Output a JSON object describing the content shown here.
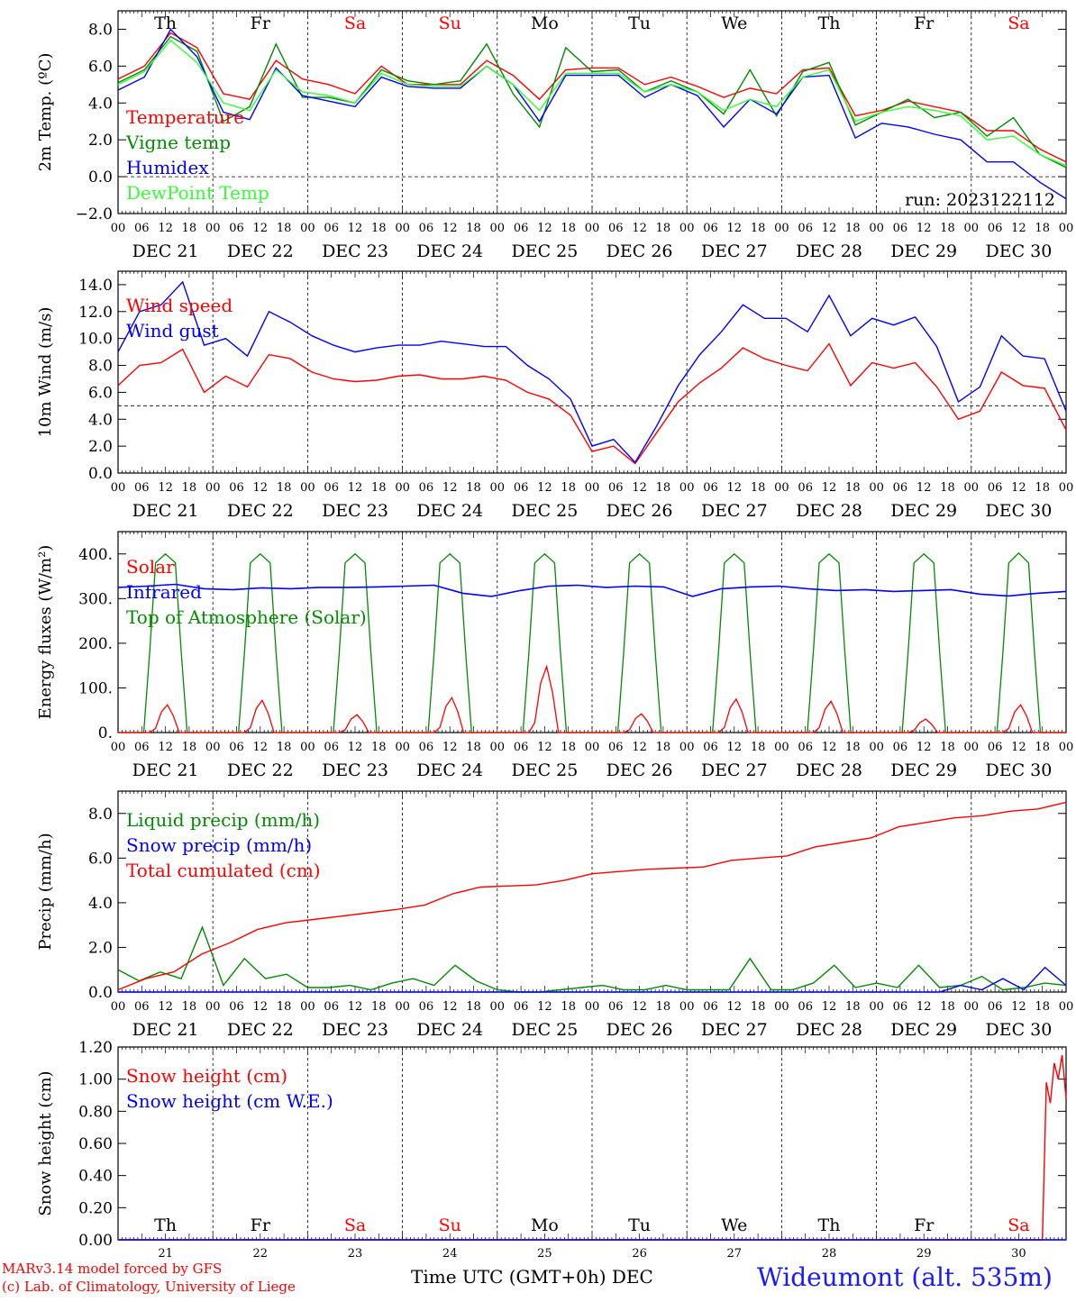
{
  "footer": {
    "credit_line1": "MARv3.14 model forced by GFS",
    "credit_line2": "(c) Lab. of Climatology, University of Liege",
    "x_title": "Time UTC (GMT+0h) DEC",
    "station": "Wideumont (alt. 535m)"
  },
  "colors": {
    "red": "#ff0000",
    "green": "#008c00",
    "blue": "#0000ff",
    "lightgreen": "#33ff33",
    "weekend": "#ff0000",
    "weekday": "#000000"
  },
  "chart_data": [
    {
      "type": "line",
      "ylabel": "2m Temp. (ºC)",
      "ylim": [
        -2,
        9
      ],
      "y_ticks": [
        -2,
        0,
        2,
        4,
        6,
        8
      ],
      "y_tick_labels": [
        "−2.0",
        "0.0",
        "2.0",
        "4.0",
        "6.0",
        "8.0"
      ],
      "x_hours": [
        0,
        6,
        12,
        18,
        24,
        30,
        36,
        42,
        48,
        54,
        60,
        66,
        72,
        78,
        84,
        90,
        96,
        102,
        108,
        114,
        120,
        126,
        132,
        138,
        144,
        150,
        156,
        162,
        168,
        174,
        180,
        186,
        192,
        198,
        204,
        210,
        216,
        222,
        228,
        234,
        240
      ],
      "x_tick_labels": [
        "00",
        "06",
        "12",
        "18",
        "00",
        "06",
        "12",
        "18",
        "00",
        "06",
        "12",
        "18",
        "00",
        "06",
        "12",
        "18",
        "00",
        "06",
        "12",
        "18",
        "00",
        "06",
        "12",
        "18",
        "00",
        "06",
        "12",
        "18",
        "00",
        "06",
        "12",
        "18",
        "00",
        "06",
        "12",
        "18",
        "00",
        "06",
        "12",
        "18",
        "00"
      ],
      "date_labels": [
        "DEC 21",
        "DEC 22",
        "DEC 23",
        "DEC 24",
        "DEC 25",
        "DEC 26",
        "DEC 27",
        "DEC 28",
        "DEC 29",
        "DEC 30"
      ],
      "day_labels": [
        "Th",
        "Fr",
        "Sa",
        "Su",
        "Mo",
        "Tu",
        "We",
        "Th",
        "Fr",
        "Sa"
      ],
      "run_label": "run: 2023122112",
      "dashed_reference": 0,
      "series": [
        {
          "name": "Temperature",
          "color": "#ff0000",
          "values": [
            5.3,
            6.0,
            7.8,
            7.0,
            4.5,
            4.2,
            6.3,
            5.3,
            5.0,
            4.5,
            6.0,
            5.0,
            5.0,
            5.0,
            6.3,
            5.5,
            4.2,
            5.8,
            5.9,
            5.9,
            5.0,
            5.4,
            4.9,
            4.3,
            4.8,
            4.5,
            5.8,
            5.9,
            3.3,
            3.6,
            4.1,
            3.8,
            3.5,
            2.5,
            2.5,
            1.5,
            0.8
          ]
        },
        {
          "name": "Vigne temp",
          "color": "#008c00",
          "values": [
            5.1,
            5.8,
            7.6,
            6.8,
            3.0,
            3.8,
            7.2,
            4.3,
            4.3,
            4.0,
            5.8,
            5.2,
            5.0,
            5.2,
            7.2,
            4.5,
            2.7,
            7.0,
            5.7,
            5.8,
            4.6,
            5.2,
            4.6,
            3.4,
            5.8,
            3.3,
            5.7,
            6.2,
            2.8,
            3.5,
            4.2,
            3.2,
            3.5,
            2.2,
            3.2,
            1.2,
            0.5
          ]
        },
        {
          "name": "Humidex",
          "color": "#0000ff",
          "values": [
            4.7,
            5.4,
            8.0,
            6.5,
            3.5,
            3.1,
            5.9,
            4.4,
            4.1,
            3.8,
            5.4,
            4.9,
            4.8,
            4.8,
            6.0,
            5.0,
            3.0,
            5.5,
            5.5,
            5.5,
            4.3,
            5.0,
            4.4,
            2.7,
            4.2,
            3.4,
            5.4,
            5.5,
            2.1,
            2.9,
            2.7,
            2.3,
            2.0,
            0.8,
            0.8,
            -0.3,
            -1.2
          ]
        },
        {
          "name": "DewPoint Temp",
          "color": "#33ff33",
          "values": [
            5.0,
            5.7,
            7.4,
            6.2,
            4.0,
            3.6,
            5.8,
            4.6,
            4.4,
            4.0,
            5.6,
            5.0,
            4.9,
            4.9,
            6.0,
            5.0,
            3.6,
            5.6,
            5.6,
            5.6,
            4.6,
            5.0,
            4.6,
            3.6,
            4.2,
            3.8,
            5.4,
            5.8,
            3.0,
            3.5,
            3.8,
            3.6,
            3.3,
            2.0,
            2.2,
            1.2,
            0.6
          ]
        }
      ],
      "legend_placement": "top-left"
    },
    {
      "type": "line",
      "ylabel": "10m Wind (m/s)",
      "ylim": [
        0,
        15
      ],
      "y_ticks": [
        0,
        2,
        4,
        6,
        8,
        10,
        12,
        14
      ],
      "y_tick_labels": [
        "0.0",
        "2.0",
        "4.0",
        "6.0",
        "8.0",
        "10.0",
        "12.0",
        "14.0"
      ],
      "dashed_reference": 5,
      "series": [
        {
          "name": "Wind speed",
          "color": "#ff0000",
          "values": [
            6.5,
            8.0,
            8.2,
            9.2,
            6.0,
            7.2,
            6.4,
            8.8,
            8.5,
            7.5,
            7.0,
            6.8,
            6.9,
            7.2,
            7.3,
            7.0,
            7.0,
            7.2,
            6.9,
            6.0,
            5.5,
            4.3,
            1.6,
            2.0,
            0.7,
            3.0,
            5.3,
            6.7,
            7.8,
            9.3,
            8.5,
            8.0,
            7.6,
            9.6,
            6.5,
            8.2,
            7.8,
            8.2,
            6.4,
            4.0,
            4.6,
            7.5,
            6.5,
            6.3,
            3.2
          ]
        },
        {
          "name": "Wind gust",
          "color": "#0000ff",
          "values": [
            9.0,
            12.0,
            12.5,
            14.2,
            9.5,
            10.0,
            8.7,
            12.0,
            11.2,
            10.2,
            9.5,
            9.0,
            9.3,
            9.5,
            9.5,
            9.8,
            9.6,
            9.4,
            9.4,
            8.0,
            7.0,
            5.5,
            2.0,
            2.5,
            0.8,
            3.5,
            6.5,
            8.8,
            10.5,
            12.5,
            11.5,
            11.5,
            10.5,
            13.2,
            10.2,
            11.5,
            11.0,
            11.6,
            9.4,
            5.3,
            6.4,
            10.2,
            8.7,
            8.5,
            4.6
          ]
        }
      ],
      "legend_placement": "top-left"
    },
    {
      "type": "line",
      "ylabel": "Energy fluxes (W/m²)",
      "ylim": [
        0,
        450
      ],
      "y_ticks": [
        0,
        100,
        200,
        300,
        400
      ],
      "y_tick_labels": [
        "0.",
        "100.",
        "200.",
        "300.",
        "400."
      ],
      "series": [
        {
          "name": "Solar",
          "color": "#ff0000",
          "daily_peak_wm2": [
            62,
            72,
            40,
            78,
            148,
            42,
            75,
            70,
            30,
            62
          ]
        },
        {
          "name": "Infrared",
          "color": "#0000ff",
          "values": [
            325,
            328,
            332,
            322,
            320,
            324,
            322,
            325,
            325,
            326,
            328,
            330,
            312,
            305,
            318,
            328,
            330,
            325,
            328,
            326,
            305,
            322,
            326,
            328,
            322,
            318,
            320,
            316,
            318,
            320,
            310,
            306,
            312,
            316
          ]
        },
        {
          "name": "Top of Atmosphere (Solar)",
          "color": "#008c00",
          "daily_peak_wm2": [
            400,
            400,
            400,
            400,
            400,
            400,
            400,
            400,
            400,
            402
          ]
        }
      ],
      "legend_placement": "top-left"
    },
    {
      "type": "line",
      "ylabel": "Precip (mm/h)",
      "ylim": [
        0,
        9
      ],
      "y_ticks": [
        0,
        2,
        4,
        6,
        8
      ],
      "y_tick_labels": [
        "0.0",
        "2.0",
        "4.0",
        "6.0",
        "8.0"
      ],
      "series": [
        {
          "name": "Liquid precip (mm/h)",
          "color": "#008c00",
          "values": [
            1.0,
            0.5,
            0.9,
            0.6,
            2.9,
            0.3,
            1.5,
            0.6,
            0.8,
            0.2,
            0.2,
            0.3,
            0.1,
            0.4,
            0.6,
            0.3,
            1.2,
            0.5,
            0.1,
            0.0,
            0.0,
            0.1,
            0.2,
            0.3,
            0.1,
            0.1,
            0.3,
            0.1,
            0.1,
            0.1,
            1.5,
            0.1,
            0.1,
            0.4,
            1.2,
            0.2,
            0.4,
            0.2,
            1.2,
            0.2,
            0.3,
            0.7,
            0.1,
            0.2,
            0.4,
            0.3
          ]
        },
        {
          "name": "Snow precip (mm/h)",
          "color": "#0000ff",
          "values": [
            0,
            0,
            0,
            0,
            0,
            0,
            0,
            0,
            0,
            0,
            0,
            0,
            0,
            0,
            0,
            0,
            0,
            0,
            0,
            0,
            0,
            0,
            0,
            0,
            0,
            0,
            0,
            0,
            0,
            0,
            0,
            0,
            0,
            0,
            0,
            0,
            0,
            0,
            0,
            0,
            0.3,
            0.1,
            0.6,
            0.1,
            1.1,
            0.3
          ]
        },
        {
          "name": "Total cumulated (cm)",
          "color": "#ff0000",
          "values": [
            0.1,
            0.6,
            0.9,
            1.7,
            2.2,
            2.8,
            3.1,
            3.25,
            3.4,
            3.55,
            3.7,
            3.9,
            4.4,
            4.7,
            4.75,
            4.8,
            5.0,
            5.3,
            5.4,
            5.5,
            5.55,
            5.6,
            5.9,
            6.0,
            6.1,
            6.5,
            6.7,
            6.9,
            7.4,
            7.6,
            7.8,
            7.9,
            8.1,
            8.2,
            8.5
          ]
        }
      ],
      "legend_placement": "top-left"
    },
    {
      "type": "line",
      "ylabel": "Snow height (cm)",
      "ylim": [
        0,
        1.2
      ],
      "y_ticks": [
        0,
        0.2,
        0.4,
        0.6,
        0.8,
        1.0,
        1.2
      ],
      "y_tick_labels": [
        "0.00",
        "0.20",
        "0.40",
        "0.60",
        "0.80",
        "1.00",
        "1.20"
      ],
      "x_date_numbers": [
        "21",
        "22",
        "23",
        "24",
        "25",
        "26",
        "27",
        "28",
        "29",
        "30"
      ],
      "day_labels": [
        "Th",
        "Fr",
        "Sa",
        "Su",
        "Mo",
        "Tu",
        "We",
        "Th",
        "Fr",
        "Sa"
      ],
      "series": [
        {
          "name": "Snow height (cm)",
          "color": "#ff0000",
          "x": [
            0,
            228,
            229,
            230,
            231,
            232,
            233,
            234,
            235,
            236,
            237,
            238,
            239,
            240
          ],
          "values": [
            0,
            0,
            0,
            0,
            0,
            0,
            0,
            0,
            0.98,
            0.85,
            1.1,
            1.0,
            1.15,
            0.88
          ]
        },
        {
          "name": "Snow height (cm W.E.)",
          "color": "#0000ff",
          "x": [
            0,
            240
          ],
          "values": [
            0,
            0
          ]
        }
      ],
      "legend_placement": "top-left"
    }
  ]
}
